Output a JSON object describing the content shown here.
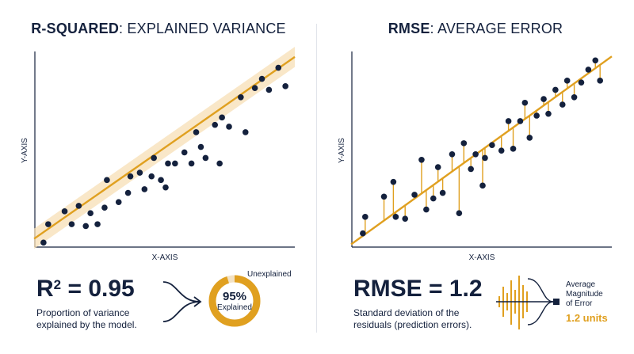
{
  "colors": {
    "navy": "#14213d",
    "accent": "#e0a020",
    "band": "#f7dfb6",
    "donut_track": "#f3e2c4"
  },
  "left": {
    "title_strong": "R-SQUARED",
    "title_rest": ": EXPLAINED VARIANCE",
    "xlabel": "X-AXIS",
    "ylabel": "Y-AXIS",
    "stat_prefix": "R",
    "stat_sup": "2",
    "stat_value": " = 0.95",
    "desc_line1": "Proportion of variance",
    "desc_line2": "explained by the model.",
    "donut_percent": "95%",
    "donut_label": "Explained",
    "donut_unexplained": "Unexplained",
    "explained_fraction": 0.95,
    "fit_line": {
      "x0": 0,
      "y0": 0.5,
      "x1": 10,
      "y1": 9.4
    },
    "points": [
      [
        0.3,
        0.2
      ],
      [
        0.5,
        1.2
      ],
      [
        1.2,
        1.9
      ],
      [
        1.5,
        1.2
      ],
      [
        1.8,
        2.2
      ],
      [
        2.1,
        1.1
      ],
      [
        2.3,
        1.8
      ],
      [
        2.6,
        1.2
      ],
      [
        2.9,
        2.1
      ],
      [
        3.0,
        3.6
      ],
      [
        3.5,
        2.4
      ],
      [
        3.9,
        2.9
      ],
      [
        4.0,
        3.8
      ],
      [
        4.4,
        4.0
      ],
      [
        4.6,
        3.1
      ],
      [
        4.9,
        3.8
      ],
      [
        5.0,
        4.8
      ],
      [
        5.3,
        3.6
      ],
      [
        5.5,
        3.2
      ],
      [
        5.6,
        4.5
      ],
      [
        5.9,
        4.5
      ],
      [
        6.3,
        5.1
      ],
      [
        6.6,
        4.5
      ],
      [
        6.8,
        6.2
      ],
      [
        7.0,
        5.4
      ],
      [
        7.2,
        4.8
      ],
      [
        7.6,
        6.6
      ],
      [
        7.8,
        4.5
      ],
      [
        7.9,
        7.0
      ],
      [
        8.2,
        6.5
      ],
      [
        8.7,
        8.1
      ],
      [
        8.9,
        6.2
      ],
      [
        9.3,
        8.6
      ],
      [
        9.6,
        9.1
      ],
      [
        9.9,
        8.5
      ],
      [
        10.3,
        9.7
      ],
      [
        10.6,
        8.7
      ]
    ]
  },
  "right": {
    "title_strong": "RMSE",
    "title_rest": ": AVERAGE ERROR",
    "xlabel": "X-AXIS",
    "ylabel": "Y-AXIS",
    "stat_value": "RMSE = 1.2",
    "desc_line1": "Standard deviation of the",
    "desc_line2": "residuals (prediction errors).",
    "legend_line1": "Average",
    "legend_line2": "Magnitude",
    "legend_line3": "of Error",
    "legend_units": "1.2 units",
    "fit_line": {
      "x0": 0,
      "y0": 0.2,
      "x1": 10,
      "y1": 9.4
    },
    "points": [
      [
        0.4,
        0.7
      ],
      [
        0.5,
        1.6
      ],
      [
        1.3,
        2.7
      ],
      [
        1.7,
        3.5
      ],
      [
        1.8,
        1.6
      ],
      [
        2.2,
        1.5
      ],
      [
        2.6,
        2.8
      ],
      [
        2.9,
        4.7
      ],
      [
        3.1,
        2.0
      ],
      [
        3.4,
        2.6
      ],
      [
        3.6,
        4.3
      ],
      [
        3.8,
        2.9
      ],
      [
        4.2,
        5.0
      ],
      [
        4.5,
        1.8
      ],
      [
        4.7,
        5.6
      ],
      [
        5.0,
        4.2
      ],
      [
        5.2,
        5.0
      ],
      [
        5.5,
        3.3
      ],
      [
        5.6,
        4.8
      ],
      [
        5.9,
        5.5
      ],
      [
        6.3,
        5.2
      ],
      [
        6.6,
        6.8
      ],
      [
        6.8,
        5.3
      ],
      [
        7.1,
        6.8
      ],
      [
        7.3,
        7.8
      ],
      [
        7.5,
        5.9
      ],
      [
        7.8,
        7.1
      ],
      [
        8.1,
        8.0
      ],
      [
        8.3,
        7.2
      ],
      [
        8.6,
        8.5
      ],
      [
        8.9,
        7.7
      ],
      [
        9.1,
        9.0
      ],
      [
        9.4,
        8.1
      ],
      [
        9.7,
        8.9
      ],
      [
        10.0,
        9.6
      ],
      [
        10.3,
        10.1
      ],
      [
        10.5,
        9.0
      ]
    ]
  }
}
